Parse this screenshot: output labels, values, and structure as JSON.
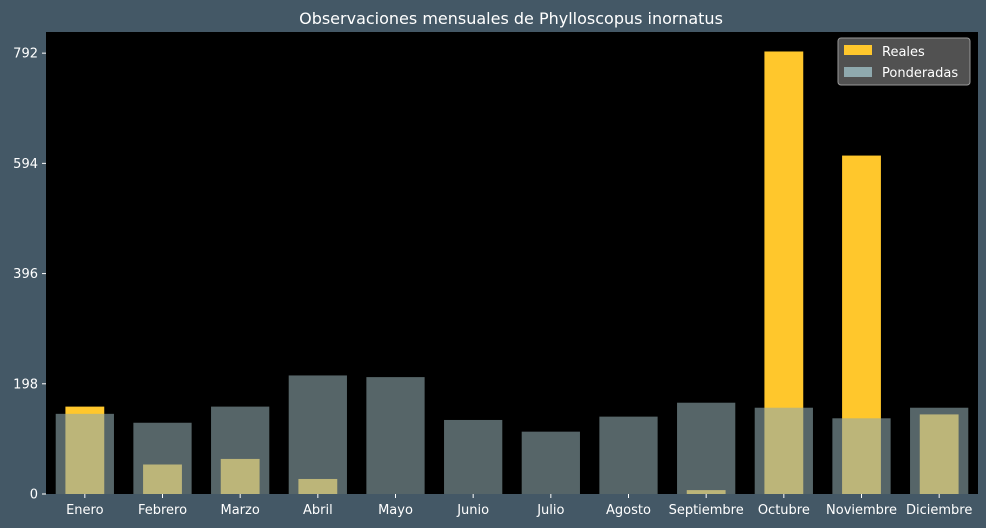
{
  "chart_data": {
    "type": "bar",
    "title": "Observaciones mensuales de Phylloscopus inornatus",
    "xlabel": "",
    "ylabel": "",
    "categories": [
      "Enero",
      "Febrero",
      "Marzo",
      "Abril",
      "Mayo",
      "Junio",
      "Julio",
      "Agosto",
      "Septiembre",
      "Octubre",
      "Noviembre",
      "Diciembre"
    ],
    "series": [
      {
        "name": "Reales",
        "values": [
          157,
          53,
          63,
          27,
          0,
          0,
          0,
          0,
          7,
          795,
          608,
          143
        ],
        "color": "#ffc72c"
      },
      {
        "name": "Ponderadas",
        "values": [
          144,
          128,
          157,
          213,
          210,
          133,
          112,
          139,
          164,
          155,
          136,
          155
        ],
        "color": "#8fa9ae"
      }
    ],
    "ylim": [
      0,
      830
    ],
    "yticks": [
      0,
      198,
      396,
      594,
      792
    ],
    "legend_position": "top-right",
    "grid": false,
    "plot_background": "#000000",
    "figure_background": "#445866"
  }
}
